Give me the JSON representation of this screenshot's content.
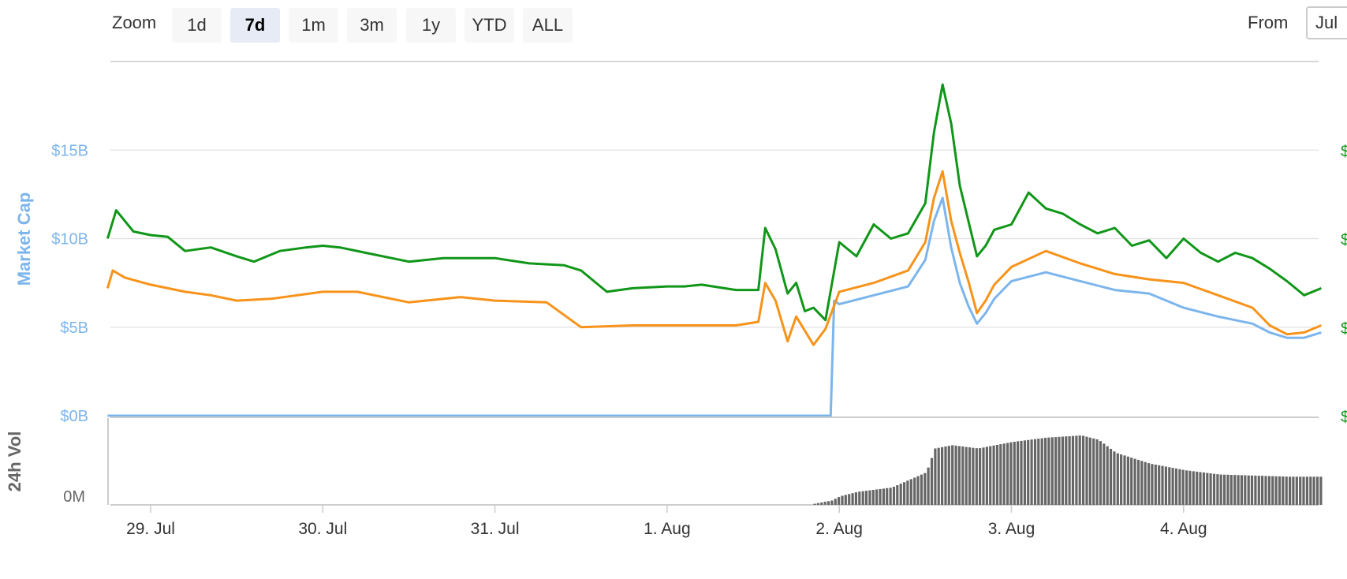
{
  "zoom": {
    "label": "Zoom",
    "buttons": [
      "1d",
      "7d",
      "1m",
      "3m",
      "1y",
      "YTD",
      "ALL"
    ],
    "selected": "7d"
  },
  "range": {
    "from_label": "From",
    "from_value": "Jul"
  },
  "colors": {
    "market_cap": "#7cb5ec",
    "orange_series": "#f7931a",
    "green_series": "#109618",
    "volume": "#666666",
    "axis_left": "#7cb5ec",
    "axis_right": "#109618"
  },
  "chart_data": {
    "type": "line",
    "x_ticks": [
      "29. Jul",
      "30. Jul",
      "31. Jul",
      "1. Aug",
      "2. Aug",
      "3. Aug",
      "4. Aug"
    ],
    "x_range": [
      "28. Jul 18:00",
      "4. Aug 20:00"
    ],
    "y_axis_title": "Market Cap",
    "y_ticks": [
      "$0B",
      "$5B",
      "$10B",
      "$15B"
    ],
    "ylim": [
      0,
      20
    ],
    "right_axis_tick_prefix": "$",
    "volume_axis_title": "24h Vol",
    "volume_ticks": [
      "0M"
    ],
    "grid": true,
    "series": [
      {
        "color": "#7cb5ec",
        "x": [
          -0.25,
          3.95,
          3.97,
          4.0,
          4.2,
          4.4,
          4.5,
          4.55,
          4.6,
          4.65,
          4.7,
          4.75,
          4.8,
          4.85,
          4.9,
          5.0,
          5.2,
          5.4,
          5.6,
          5.8,
          6.0,
          6.2,
          6.4,
          6.5,
          6.6,
          6.7,
          6.8
        ],
        "values": [
          0,
          0,
          6.5,
          6.3,
          6.8,
          7.3,
          8.8,
          11.0,
          12.3,
          9.5,
          7.5,
          6.2,
          5.2,
          5.8,
          6.6,
          7.6,
          8.1,
          7.6,
          7.1,
          6.9,
          6.1,
          5.6,
          5.2,
          4.7,
          4.4,
          4.4,
          4.7
        ]
      },
      {
        "color": "#f7931a",
        "x": [
          -0.25,
          -0.22,
          -0.15,
          0.0,
          0.2,
          0.35,
          0.5,
          0.7,
          1.0,
          1.2,
          1.5,
          1.8,
          2.0,
          2.3,
          2.5,
          2.8,
          3.0,
          3.2,
          3.4,
          3.53,
          3.57,
          3.63,
          3.7,
          3.75,
          3.85,
          3.92,
          4.0,
          4.2,
          4.4,
          4.5,
          4.55,
          4.6,
          4.65,
          4.7,
          4.75,
          4.8,
          4.85,
          4.9,
          5.0,
          5.2,
          5.4,
          5.6,
          5.8,
          6.0,
          6.2,
          6.4,
          6.5,
          6.6,
          6.7,
          6.8
        ],
        "values": [
          7.2,
          8.2,
          7.8,
          7.4,
          7.0,
          6.8,
          6.5,
          6.6,
          7.0,
          7.0,
          6.4,
          6.7,
          6.5,
          6.4,
          5.0,
          5.1,
          5.1,
          5.1,
          5.1,
          5.3,
          7.5,
          6.5,
          4.2,
          5.6,
          4.0,
          4.9,
          7.0,
          7.5,
          8.2,
          9.8,
          12.3,
          13.8,
          11.0,
          9.2,
          7.6,
          5.8,
          6.5,
          7.4,
          8.4,
          9.3,
          8.6,
          8.0,
          7.7,
          7.5,
          6.8,
          6.1,
          5.1,
          4.6,
          4.7,
          5.1
        ]
      },
      {
        "color": "#109618",
        "x": [
          -0.25,
          -0.2,
          -0.1,
          0.0,
          0.1,
          0.2,
          0.35,
          0.5,
          0.6,
          0.75,
          0.9,
          1.0,
          1.1,
          1.25,
          1.5,
          1.7,
          1.9,
          2.0,
          2.2,
          2.4,
          2.5,
          2.65,
          2.8,
          3.0,
          3.1,
          3.2,
          3.4,
          3.53,
          3.57,
          3.63,
          3.7,
          3.75,
          3.8,
          3.85,
          3.92,
          4.0,
          4.1,
          4.2,
          4.3,
          4.4,
          4.5,
          4.55,
          4.6,
          4.65,
          4.7,
          4.75,
          4.8,
          4.85,
          4.9,
          5.0,
          5.1,
          5.2,
          5.3,
          5.4,
          5.5,
          5.6,
          5.7,
          5.8,
          5.9,
          6.0,
          6.1,
          6.2,
          6.3,
          6.4,
          6.5,
          6.6,
          6.7,
          6.8
        ],
        "values": [
          10.0,
          11.6,
          10.4,
          10.2,
          10.1,
          9.3,
          9.5,
          9.0,
          8.7,
          9.3,
          9.5,
          9.6,
          9.5,
          9.2,
          8.7,
          8.9,
          8.9,
          8.9,
          8.6,
          8.5,
          8.2,
          7.0,
          7.2,
          7.3,
          7.3,
          7.4,
          7.1,
          7.1,
          10.6,
          9.4,
          6.9,
          7.5,
          5.9,
          6.1,
          5.4,
          9.8,
          9.0,
          10.8,
          10.0,
          10.3,
          12.0,
          16.0,
          18.7,
          16.5,
          13.0,
          11.0,
          9.0,
          9.6,
          10.5,
          10.8,
          12.6,
          11.7,
          11.4,
          10.8,
          10.3,
          10.6,
          9.6,
          9.9,
          8.9,
          10.0,
          9.2,
          8.7,
          9.2,
          8.9,
          8.3,
          7.6,
          6.8,
          7.2
        ]
      }
    ],
    "volume": {
      "color": "#666666",
      "x": [
        3.85,
        3.95,
        4.0,
        4.1,
        4.3,
        4.5,
        4.55,
        4.65,
        4.8,
        5.0,
        5.2,
        5.4,
        5.5,
        5.6,
        5.8,
        6.0,
        6.2,
        6.4,
        6.6,
        6.8
      ],
      "levels": [
        0.01,
        0.04,
        0.08,
        0.12,
        0.16,
        0.3,
        0.52,
        0.55,
        0.52,
        0.58,
        0.62,
        0.64,
        0.6,
        0.48,
        0.38,
        0.32,
        0.28,
        0.27,
        0.26,
        0.26
      ]
    }
  }
}
